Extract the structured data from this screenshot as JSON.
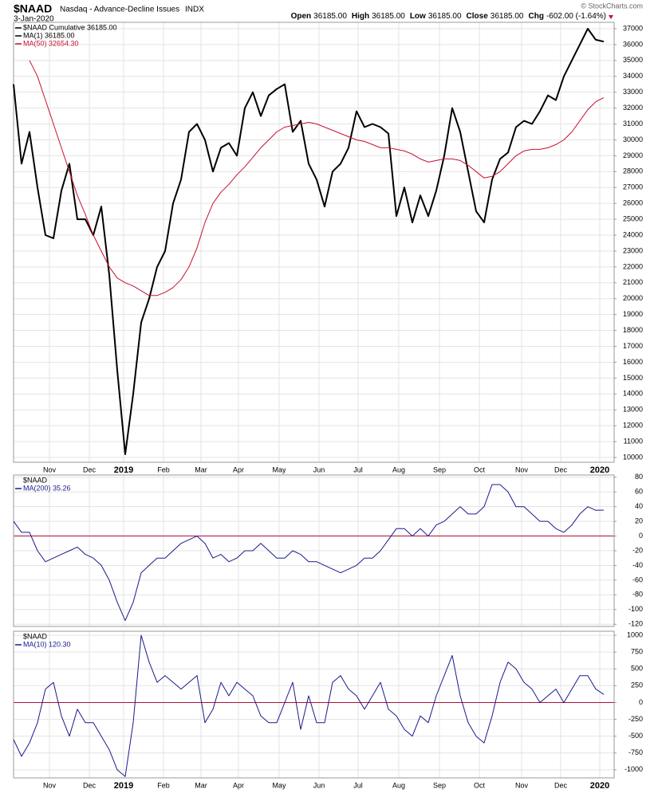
{
  "header": {
    "symbol": "$NAAD",
    "name": "Nasdaq - Advance-Decline Issues",
    "exchange": "INDX",
    "date": "3-Jan-2020",
    "quote": [
      {
        "label": "Open",
        "value": "36185.00"
      },
      {
        "label": "High",
        "value": "36185.00"
      },
      {
        "label": "Low",
        "value": "36185.00"
      },
      {
        "label": "Close",
        "value": "36185.00"
      },
      {
        "label": "Chg",
        "value": "-602.00 (-1.64%)"
      }
    ],
    "credit": "© StockCharts.com"
  },
  "chart_data": [
    {
      "type": "line",
      "title": "$NAAD Cumulative 36185.00",
      "title_color": "#000000",
      "grid": true,
      "show_xtick_labels": true,
      "xlim": [
        0,
        75.3
      ],
      "xticks": [
        {
          "value": 4.5,
          "label": "Nov"
        },
        {
          "value": 9.5,
          "label": "Dec"
        },
        {
          "value": 13.8,
          "label": "2019"
        },
        {
          "value": 18.8,
          "label": "Feb"
        },
        {
          "value": 23.5,
          "label": "Mar"
        },
        {
          "value": 28.2,
          "label": "Apr"
        },
        {
          "value": 33.3,
          "label": "May"
        },
        {
          "value": 38.3,
          "label": "Jun"
        },
        {
          "value": 43.2,
          "label": "Jul"
        },
        {
          "value": 48.3,
          "label": "Aug"
        },
        {
          "value": 53.4,
          "label": "Sep"
        },
        {
          "value": 58.4,
          "label": "Oct"
        },
        {
          "value": 63.7,
          "label": "Nov"
        },
        {
          "value": 68.6,
          "label": "Dec"
        },
        {
          "value": 73.5,
          "label": "2020"
        }
      ],
      "ylim": [
        9700,
        37400
      ],
      "yticks": [
        10000,
        11000,
        12000,
        13000,
        14000,
        15000,
        16000,
        17000,
        18000,
        19000,
        20000,
        21000,
        22000,
        23000,
        24000,
        25000,
        26000,
        27000,
        28000,
        29000,
        30000,
        31000,
        32000,
        33000,
        34000,
        35000,
        36000,
        37000
      ],
      "series": [
        {
          "name": "MA(1) 36185.00",
          "color": "#000000",
          "width": 2,
          "values": [
            33500,
            28500,
            30500,
            27000,
            24000,
            23800,
            26800,
            28500,
            25000,
            25000,
            24000,
            25800,
            21500,
            15500,
            10200,
            14000,
            18500,
            20000,
            22000,
            23000,
            26000,
            27500,
            30500,
            31000,
            30000,
            28000,
            29500,
            29800,
            29000,
            32000,
            33000,
            31500,
            32800,
            33200,
            33500,
            30500,
            31200,
            28500,
            27500,
            25800,
            28000,
            28500,
            29500,
            31800,
            30800,
            31000,
            30800,
            30400,
            25200,
            27000,
            24800,
            26500,
            25200,
            26800,
            29000,
            32000,
            30500,
            28000,
            25500,
            24800,
            27500,
            28800,
            29200,
            30800,
            31200,
            31000,
            31800,
            32800,
            32500,
            34000,
            35000,
            36000,
            37000,
            36300,
            36185
          ]
        },
        {
          "name": "MA(50) 32654.30",
          "color": "#c8102e",
          "width": 1,
          "values": [
            null,
            null,
            35000,
            34000,
            32500,
            31000,
            29500,
            28000,
            26500,
            25300,
            24000,
            23000,
            22000,
            21300,
            21000,
            20800,
            20500,
            20200,
            20200,
            20400,
            20700,
            21200,
            22000,
            23200,
            24800,
            26000,
            26700,
            27200,
            27800,
            28300,
            28900,
            29500,
            30000,
            30500,
            30800,
            30900,
            31000,
            31100,
            31000,
            30800,
            30600,
            30400,
            30200,
            30000,
            29900,
            29700,
            29500,
            29500,
            29400,
            29300,
            29100,
            28800,
            28600,
            28700,
            28800,
            28800,
            28700,
            28400,
            28000,
            27600,
            27700,
            28000,
            28500,
            29000,
            29300,
            29400,
            29400,
            29500,
            29700,
            30000,
            30500,
            31200,
            31900,
            32400,
            32654
          ]
        }
      ]
    },
    {
      "type": "line",
      "title": "$NAAD",
      "grid": true,
      "show_xtick_labels": false,
      "xlim": [
        0,
        75.3
      ],
      "xticks": [
        {
          "value": 4.5,
          "label": "Nov"
        },
        {
          "value": 9.5,
          "label": "Dec"
        },
        {
          "value": 13.8,
          "label": "2019"
        },
        {
          "value": 18.8,
          "label": "Feb"
        },
        {
          "value": 23.5,
          "label": "Mar"
        },
        {
          "value": 28.2,
          "label": "Apr"
        },
        {
          "value": 33.3,
          "label": "May"
        },
        {
          "value": 38.3,
          "label": "Jun"
        },
        {
          "value": 43.2,
          "label": "Jul"
        },
        {
          "value": 48.3,
          "label": "Aug"
        },
        {
          "value": 53.4,
          "label": "Sep"
        },
        {
          "value": 58.4,
          "label": "Oct"
        },
        {
          "value": 63.7,
          "label": "Nov"
        },
        {
          "value": 68.6,
          "label": "Dec"
        },
        {
          "value": 73.5,
          "label": "2020"
        }
      ],
      "ylim": [
        -123,
        83
      ],
      "yticks": [
        80,
        60,
        40,
        20,
        0,
        -20,
        -40,
        -60,
        -80,
        -100,
        -120
      ],
      "reference_line": {
        "value": 0,
        "color": "#b0103a"
      },
      "series": [
        {
          "name": "MA(200) 35.26",
          "color": "#1a1a8c",
          "width": 1,
          "values": [
            20,
            5,
            5,
            -20,
            -35,
            -30,
            -25,
            -20,
            -15,
            -25,
            -30,
            -40,
            -60,
            -90,
            -115,
            -90,
            -50,
            -40,
            -30,
            -30,
            -20,
            -10,
            -5,
            0,
            -10,
            -30,
            -25,
            -35,
            -30,
            -20,
            -20,
            -10,
            -20,
            -30,
            -30,
            -20,
            -25,
            -35,
            -35,
            -40,
            -45,
            -50,
            -45,
            -40,
            -30,
            -30,
            -20,
            -5,
            10,
            10,
            0,
            10,
            0,
            15,
            20,
            30,
            40,
            30,
            30,
            40,
            70,
            70,
            60,
            40,
            40,
            30,
            20,
            20,
            10,
            5,
            15,
            30,
            40,
            35,
            35.26
          ]
        }
      ]
    },
    {
      "type": "line",
      "title": "$NAAD",
      "grid": true,
      "show_xtick_labels": true,
      "xlim": [
        0,
        75.3
      ],
      "xticks": [
        {
          "value": 4.5,
          "label": "Nov"
        },
        {
          "value": 9.5,
          "label": "Dec"
        },
        {
          "value": 13.8,
          "label": "2019"
        },
        {
          "value": 18.8,
          "label": "Feb"
        },
        {
          "value": 23.5,
          "label": "Mar"
        },
        {
          "value": 28.2,
          "label": "Apr"
        },
        {
          "value": 33.3,
          "label": "May"
        },
        {
          "value": 38.3,
          "label": "Jun"
        },
        {
          "value": 43.2,
          "label": "Jul"
        },
        {
          "value": 48.3,
          "label": "Aug"
        },
        {
          "value": 53.4,
          "label": "Sep"
        },
        {
          "value": 58.4,
          "label": "Oct"
        },
        {
          "value": 63.7,
          "label": "Nov"
        },
        {
          "value": 68.6,
          "label": "Dec"
        },
        {
          "value": 73.5,
          "label": "2020"
        }
      ],
      "ylim": [
        -1120,
        1060
      ],
      "yticks": [
        1000,
        750,
        500,
        250,
        0,
        -250,
        -500,
        -750,
        -1000
      ],
      "reference_line": {
        "value": 0,
        "color": "#b0103a"
      },
      "series": [
        {
          "name": "MA(10) 120.30",
          "color": "#1a1a8c",
          "width": 1,
          "values": [
            -550,
            -800,
            -600,
            -300,
            200,
            300,
            -200,
            -500,
            -100,
            -300,
            -300,
            -500,
            -700,
            -1000,
            -1100,
            -300,
            1000,
            600,
            300,
            400,
            300,
            200,
            300,
            400,
            -300,
            -100,
            300,
            100,
            300,
            200,
            100,
            -200,
            -300,
            -300,
            0,
            300,
            -400,
            100,
            -300,
            -300,
            300,
            400,
            200,
            100,
            -100,
            100,
            300,
            -100,
            -200,
            -400,
            -500,
            -200,
            -300,
            100,
            400,
            700,
            100,
            -300,
            -500,
            -600,
            -200,
            300,
            600,
            500,
            300,
            200,
            0,
            100,
            200,
            0,
            200,
            400,
            400,
            200,
            120.3
          ]
        }
      ]
    }
  ]
}
